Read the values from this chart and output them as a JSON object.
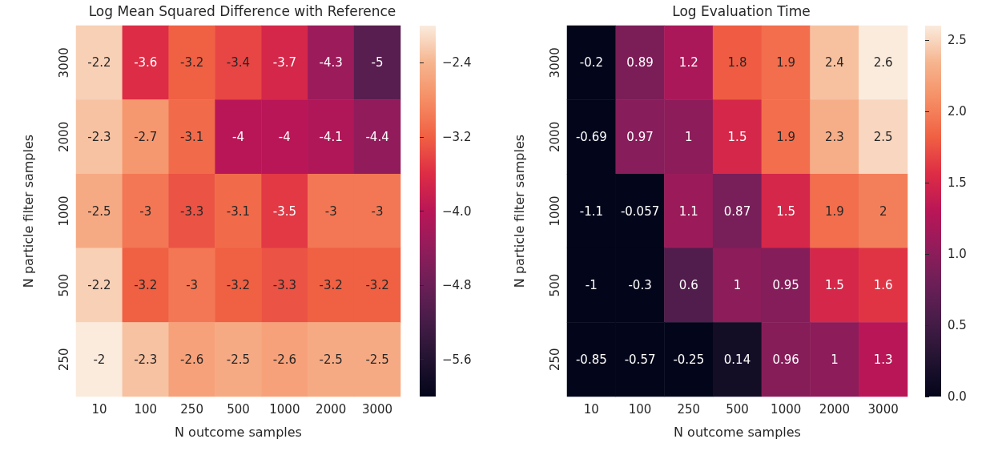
{
  "chart_data": [
    {
      "type": "heatmap",
      "title": "Log Mean Squared Difference with Reference",
      "xlabel": "N outcome samples",
      "ylabel": "N particle filter samples",
      "categories": [
        "10",
        "100",
        "250",
        "500",
        "1000",
        "2000",
        "3000"
      ],
      "y_categories": [
        "3000",
        "2000",
        "1000",
        "500",
        "250"
      ],
      "cells": [
        [
          -2.2,
          -3.6,
          -3.2,
          -3.4,
          -3.7,
          -4.3,
          -5
        ],
        [
          -2.3,
          -2.7,
          -3.1,
          -4,
          -4,
          -4.1,
          -4.4
        ],
        [
          -2.5,
          -3,
          -3.3,
          -3.1,
          -3.5,
          -3,
          -3
        ],
        [
          -2.2,
          -3.2,
          -3,
          -3.2,
          -3.3,
          -3.2,
          -3.2
        ],
        [
          -2,
          -2.3,
          -2.6,
          -2.5,
          -2.6,
          -2.5,
          -2.5
        ]
      ],
      "clim": [
        -6.0,
        -2.0
      ],
      "cticks": [
        {
          "value": -2.4,
          "label": "−2.4"
        },
        {
          "value": -3.2,
          "label": "−3.2"
        },
        {
          "value": -4.0,
          "label": "−4.0"
        },
        {
          "value": -4.8,
          "label": "−4.8"
        },
        {
          "value": -5.6,
          "label": "−5.6"
        }
      ],
      "data_labels": true
    },
    {
      "type": "heatmap",
      "title": "Log Evaluation Time",
      "xlabel": "N outcome samples",
      "ylabel": "N particle filter samples",
      "categories": [
        "10",
        "100",
        "250",
        "500",
        "1000",
        "2000",
        "3000"
      ],
      "y_categories": [
        "3000",
        "2000",
        "1000",
        "500",
        "250"
      ],
      "cells": [
        [
          -0.2,
          0.89,
          1.2,
          1.8,
          1.9,
          2.4,
          2.6
        ],
        [
          -0.69,
          0.97,
          1,
          1.5,
          1.9,
          2.3,
          2.5
        ],
        [
          -1.1,
          -0.057,
          1.1,
          0.87,
          1.5,
          1.9,
          2
        ],
        [
          -1,
          -0.3,
          0.6,
          1,
          0.95,
          1.5,
          1.6
        ],
        [
          -0.85,
          -0.57,
          -0.25,
          0.14,
          0.96,
          1,
          1.3
        ]
      ],
      "clim": [
        0,
        2.6
      ],
      "cticks": [
        {
          "value": 0,
          "label": "0.0"
        },
        {
          "value": 0.5,
          "label": "0.5"
        },
        {
          "value": 1,
          "label": "1.0"
        },
        {
          "value": 1.5,
          "label": "1.5"
        },
        {
          "value": 2,
          "label": "2.0"
        },
        {
          "value": 2.5,
          "label": "2.5"
        }
      ],
      "data_labels": true
    }
  ]
}
